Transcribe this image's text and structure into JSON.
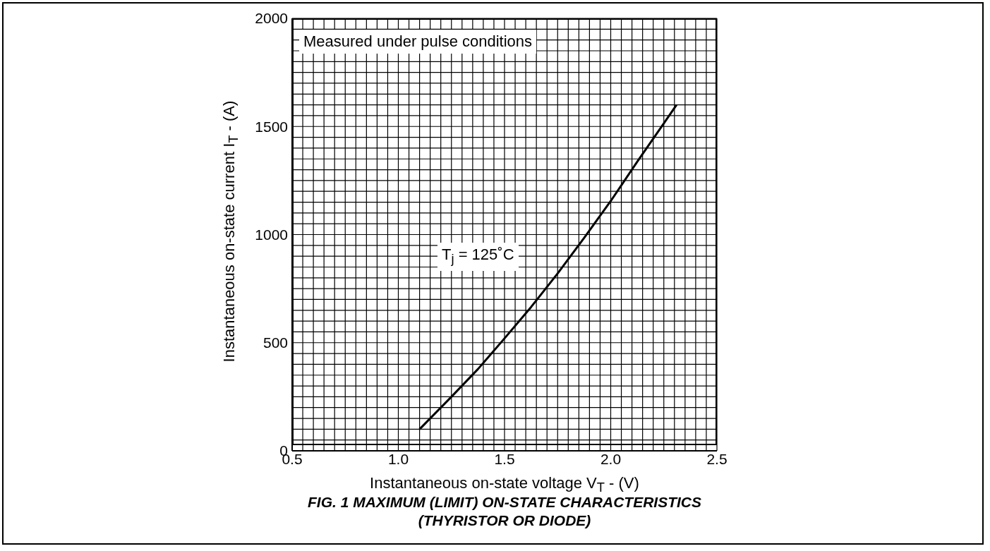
{
  "chart_data": {
    "type": "line",
    "title": "FIG. 1 MAXIMUM (LIMIT) ON-STATE CHARACTERISTICS\n(THYRISTOR OR DIODE)",
    "xlabel": "Instantaneous on-state voltage V$_{T}$ - (V)",
    "ylabel": "Instantaneous on-state current I$_{T}$ - (A)",
    "annotations": [
      "Measured under pulse conditions",
      "T$_{j}$ = 125˚C"
    ],
    "x": [
      1.1,
      1.25,
      1.375,
      1.5,
      1.625,
      1.75,
      1.875,
      2.0,
      2.125,
      2.25,
      2.31
    ],
    "series": [
      {
        "color": "#000000",
        "values": [
          100,
          250,
          378,
          520,
          665,
          820,
          985,
          1155,
          1337,
          1514,
          1600
        ]
      }
    ],
    "xlim": [
      0.5,
      2.5
    ],
    "ylim": [
      0,
      2000
    ],
    "xticks": [
      {
        "value": 0.5,
        "label": "0.5"
      },
      {
        "value": 0.55,
        "label": null
      },
      {
        "value": 0.6,
        "label": null
      },
      {
        "value": 0.65,
        "label": null
      },
      {
        "value": 0.7,
        "label": null
      },
      {
        "value": 0.75,
        "label": null
      },
      {
        "value": 0.8,
        "label": null
      },
      {
        "value": 0.85,
        "label": null
      },
      {
        "value": 0.9,
        "label": null
      },
      {
        "value": 0.95,
        "label": null
      },
      {
        "value": 1,
        "label": "1.0"
      },
      {
        "value": 1.05,
        "label": null
      },
      {
        "value": 1.1,
        "label": null
      },
      {
        "value": 1.15,
        "label": null
      },
      {
        "value": 1.2,
        "label": null
      },
      {
        "value": 1.25,
        "label": null
      },
      {
        "value": 1.3,
        "label": null
      },
      {
        "value": 1.35,
        "label": null
      },
      {
        "value": 1.4,
        "label": null
      },
      {
        "value": 1.45,
        "label": null
      },
      {
        "value": 1.5,
        "label": "1.5"
      },
      {
        "value": 1.55,
        "label": null
      },
      {
        "value": 1.6,
        "label": null
      },
      {
        "value": 1.65,
        "label": null
      },
      {
        "value": 1.7,
        "label": null
      },
      {
        "value": 1.75,
        "label": null
      },
      {
        "value": 1.8,
        "label": null
      },
      {
        "value": 1.85,
        "label": null
      },
      {
        "value": 1.9,
        "label": null
      },
      {
        "value": 1.95,
        "label": null
      },
      {
        "value": 2,
        "label": "2.0"
      },
      {
        "value": 2.05,
        "label": null
      },
      {
        "value": 2.1,
        "label": null
      },
      {
        "value": 2.15,
        "label": null
      },
      {
        "value": 2.2,
        "label": null
      },
      {
        "value": 2.25,
        "label": null
      },
      {
        "value": 2.3,
        "label": null
      },
      {
        "value": 2.35,
        "label": null
      },
      {
        "value": 2.4,
        "label": null
      },
      {
        "value": 2.45,
        "label": null
      },
      {
        "value": 2.5,
        "label": "2.5"
      }
    ],
    "yticks": [
      0,
      {
        "value": 50,
        "label": null
      },
      {
        "value": 100,
        "label": null
      },
      {
        "value": 150,
        "label": null
      },
      {
        "value": 200,
        "label": null
      },
      {
        "value": 250,
        "label": null
      },
      {
        "value": 300,
        "label": null
      },
      {
        "value": 350,
        "label": null
      },
      {
        "value": 400,
        "label": null
      },
      {
        "value": 450,
        "label": null
      },
      500,
      {
        "value": 550,
        "label": null
      },
      {
        "value": 600,
        "label": null
      },
      {
        "value": 650,
        "label": null
      },
      {
        "value": 700,
        "label": null
      },
      {
        "value": 750,
        "label": null
      },
      {
        "value": 800,
        "label": null
      },
      {
        "value": 850,
        "label": null
      },
      {
        "value": 900,
        "label": null
      },
      {
        "value": 950,
        "label": null
      },
      1000,
      {
        "value": 1050,
        "label": null
      },
      {
        "value": 1100,
        "label": null
      },
      {
        "value": 1150,
        "label": null
      },
      {
        "value": 1200,
        "label": null
      },
      {
        "value": 1250,
        "label": null
      },
      {
        "value": 1300,
        "label": null
      },
      {
        "value": 1350,
        "label": null
      },
      {
        "value": 1400,
        "label": null
      },
      {
        "value": 1450,
        "label": null
      },
      1500,
      {
        "value": 1550,
        "label": null
      },
      {
        "value": 1600,
        "label": null
      },
      {
        "value": 1650,
        "label": null
      },
      {
        "value": 1700,
        "label": null
      },
      {
        "value": 1750,
        "label": null
      },
      {
        "value": 1800,
        "label": null
      },
      {
        "value": 1850,
        "label": null
      },
      {
        "value": 1900,
        "label": null
      },
      {
        "value": 1950,
        "label": null
      },
      2000
    ],
    "grid": true,
    "marker": "none",
    "line_style": "solid"
  }
}
